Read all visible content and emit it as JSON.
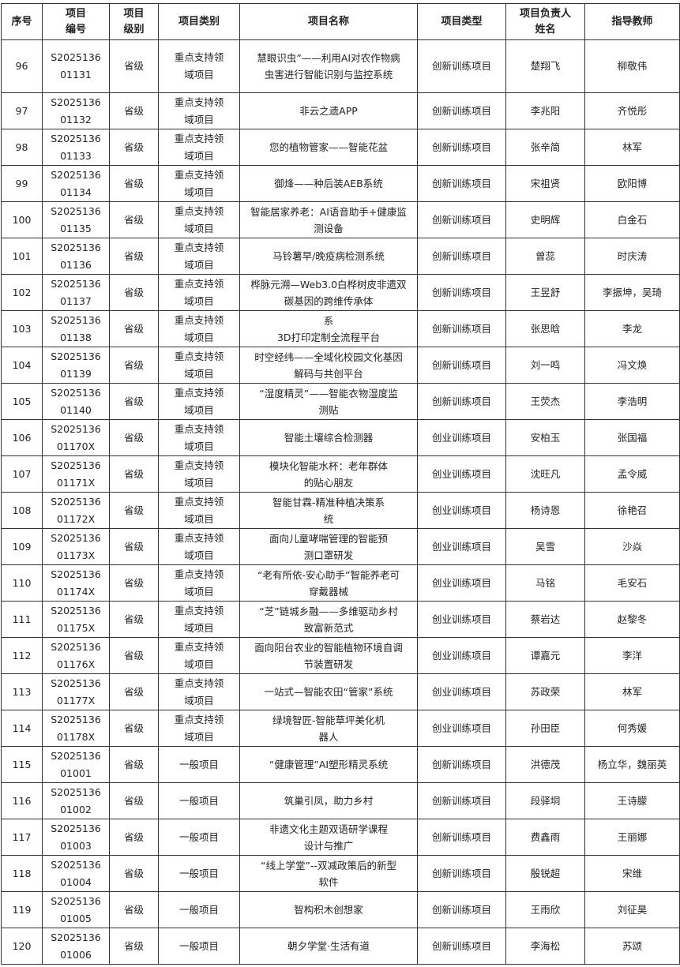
{
  "headers": [
    "序号",
    "项目\n编号",
    "项目\n级别",
    "项目类别",
    "项目名称",
    "项目类型",
    "项目负责人\n姓名",
    "指导教师"
  ],
  "rows": [
    [
      "96",
      "S2025136\n01131",
      "省级",
      "重点支持领\n域项目",
      "慧眼识虫”——利用AI对农作物病\n虫害进行智能识别与监控系统",
      "创新训练项目",
      "楚翔飞",
      "柳敬伟"
    ],
    [
      "97",
      "S2025136\n01132",
      "省级",
      "重点支持领\n域项目",
      "非云之遗APP",
      "创新训练项目",
      "李兆阳",
      "齐悦彤"
    ],
    [
      "98",
      "S2025136\n01133",
      "省级",
      "重点支持领\n域项目",
      "您的植物管家——智能花盆",
      "创新训练项目",
      "张辛简",
      "林军"
    ],
    [
      "99",
      "S2025136\n01134",
      "省级",
      "重点支持领\n域项目",
      "御烽——种后装AEB系统",
      "创新训练项目",
      "宋祖贤",
      "欧阳博"
    ],
    [
      "100",
      "S2025136\n01135",
      "省级",
      "重点支持领\n域项目",
      "智能居家养老：AI语音助手+健康监\n测设备",
      "创新训练项目",
      "史明辉",
      "白金石"
    ],
    [
      "101",
      "S2025136\n01136",
      "省级",
      "重点支持领\n域项目",
      "马铃薯早/晚疫病检测系统",
      "创新训练项目",
      "曾蕊",
      "时庆涛"
    ],
    [
      "102",
      "S2025136\n01137",
      "省级",
      "重点支持领\n域项目",
      "桦脉元溯—Web3.0白桦树皮非遗双\n碳基因的跨维传承体",
      "创新训练项目",
      "王昱舒",
      "李振坤，吴琦"
    ],
    [
      "103",
      "S2025136\n01138",
      "省级",
      "重点支持领\n域项目",
      "系\n3D打印定制全流程平台",
      "创新训练项目",
      "张思晗",
      "李龙"
    ],
    [
      "104",
      "S2025136\n01139",
      "省级",
      "重点支持领\n域项目",
      "时空经纬——全域化校园文化基因\n解码与共创平台",
      "创新训练项目",
      "刘一鸣",
      "冯文焕"
    ],
    [
      "105",
      "S2025136\n01140",
      "省级",
      "重点支持领\n域项目",
      "“湿度精灵”——智能衣物湿度监\n测贴",
      "创新训练项目",
      "王荧杰",
      "李浩明"
    ],
    [
      "106",
      "S2025136\n01170X",
      "省级",
      "重点支持领\n域项目",
      "智能土壤综合检测器",
      "创业训练项目",
      "安柏玉",
      "张国福"
    ],
    [
      "107",
      "S2025136\n01171X",
      "省级",
      "重点支持领\n域项目",
      "模块化智能水杯：老年群体\n的贴心朋友",
      "创业训练项目",
      "沈旺凡",
      "孟令威"
    ],
    [
      "108",
      "S2025136\n01172X",
      "省级",
      "重点支持领\n域项目",
      "智能甘霖-精准种植决策系\n统",
      "创业训练项目",
      "杨诗恩",
      "徐艳召"
    ],
    [
      "109",
      "S2025136\n01173X",
      "省级",
      "重点支持领\n域项目",
      "面向儿童哮喘管理的智能预\n测口罩研发",
      "创业训练项目",
      "吴雪",
      "沙焱"
    ],
    [
      "110",
      "S2025136\n01174X",
      "省级",
      "重点支持领\n域项目",
      "“老有所依-安心助手”智能养老可\n穿戴器械",
      "创业训练项目",
      "马铭",
      "毛安石"
    ],
    [
      "111",
      "S2025136\n01175X",
      "省级",
      "重点支持领\n域项目",
      "“芝”链城乡融——多维驱动乡村\n致富新范式",
      "创业训练项目",
      "蔡岩达",
      "赵黎冬"
    ],
    [
      "112",
      "S2025136\n01176X",
      "省级",
      "重点支持领\n域项目",
      "面向阳台农业的智能植物环境自调\n节装置研发",
      "创业训练项目",
      "谭嘉元",
      "李洋"
    ],
    [
      "113",
      "S2025136\n01177X",
      "省级",
      "重点支持领\n域项目",
      "一站式—智能农田“管家”系统",
      "创业训练项目",
      "苏政荣",
      "林军"
    ],
    [
      "114",
      "S2025136\n01178X",
      "省级",
      "重点支持领\n域项目",
      "绿境智匠-智能草坪美化机\n器人",
      "创业训练项目",
      "孙田臣",
      "何秀媛"
    ],
    [
      "115",
      "S2025136\n01001",
      "省级",
      "一般项目",
      "“健康管理”AI塑形精灵系统",
      "创新训练项目",
      "洪德茂",
      "杨立华，魏丽英"
    ],
    [
      "116",
      "S2025136\n01002",
      "省级",
      "一般项目",
      "筑巢引凤，助力乡村",
      "创新训练项目",
      "段驿垌",
      "王诗朦"
    ],
    [
      "117",
      "S2025136\n01003",
      "省级",
      "一般项目",
      "非遗文化主题双语研学课程\n设计与推广",
      "创新训练项目",
      "费鑫雨",
      "王丽娜"
    ],
    [
      "118",
      "S2025136\n01004",
      "省级",
      "一般项目",
      "“线上学堂”--双减政策后的新型\n软件",
      "创新训练项目",
      "殷锐超",
      "宋维"
    ],
    [
      "119",
      "S2025136\n01005",
      "省级",
      "一般项目",
      "智构积木创想家",
      "创新训练项目",
      "王雨欣",
      "刘征昊"
    ],
    [
      "120",
      "S2025136\n01006",
      "省级",
      "一般项目",
      "朝夕学堂·生活有道",
      "创新训练项目",
      "李海松",
      "苏颂"
    ]
  ]
}
